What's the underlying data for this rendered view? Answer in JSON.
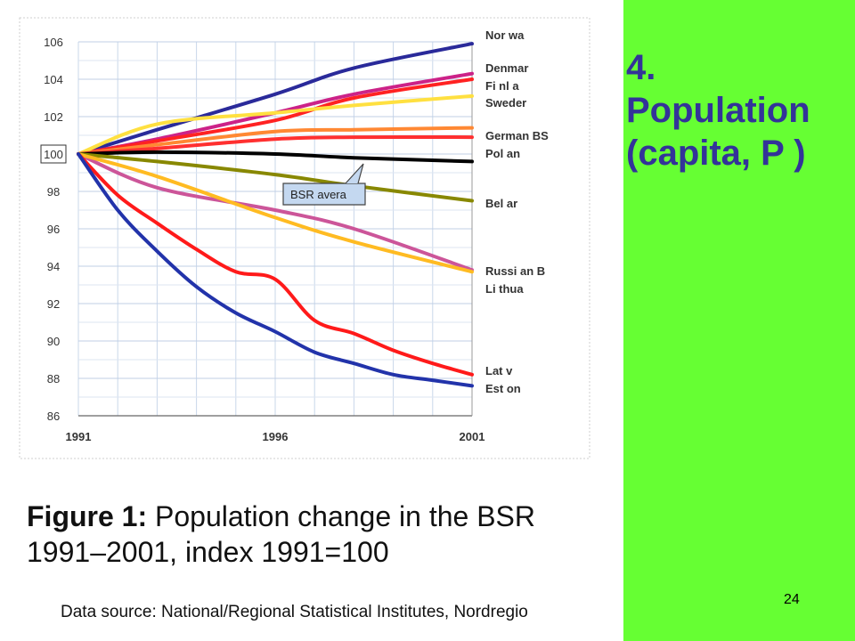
{
  "slide": {
    "title_line1": "4.",
    "title_line2": "Population",
    "title_line3": "(capita, P )",
    "page_number": "24",
    "panel_color": "#66ff33",
    "title_color": "#333399"
  },
  "figure": {
    "caption_label": "Figure 1:",
    "caption_text_line1": "Population change in the BSR",
    "caption_text_line2": "1991–2001, index 1991=100",
    "source": "Data source: National/Regional Statistical Institutes, Nordregio"
  },
  "chart_data": {
    "type": "line",
    "x_ticks": [
      "1991",
      "1996",
      "2001"
    ],
    "y_ticks": [
      "86",
      "88",
      "90",
      "92",
      "94",
      "96",
      "98",
      "100",
      "102",
      "104",
      "106"
    ],
    "xlim": [
      1991,
      2001
    ],
    "ylim": [
      86,
      106
    ],
    "grid": true,
    "annotation": "BSR avera",
    "series": [
      {
        "name": "Nor wa",
        "color": "#2a2a9a",
        "x": [
          1991,
          1993,
          1996,
          1998,
          2001
        ],
        "y": [
          100,
          101.3,
          103.2,
          104.6,
          105.9
        ]
      },
      {
        "name": "Denmar",
        "color": "#cc2288",
        "x": [
          1991,
          1993,
          1996,
          1998,
          2001
        ],
        "y": [
          100,
          100.8,
          102.2,
          103.2,
          104.3
        ]
      },
      {
        "name": "Fi nl a",
        "color": "#ff2222",
        "x": [
          1991,
          1993,
          1996,
          1998,
          2001
        ],
        "y": [
          100,
          100.7,
          101.8,
          103.0,
          104.0
        ]
      },
      {
        "name": "Sweder",
        "color": "#ffe040",
        "x": [
          1991,
          1993,
          1996,
          1998,
          2001
        ],
        "y": [
          100,
          101.6,
          102.2,
          102.6,
          103.1
        ]
      },
      {
        "name": "German BS",
        "color": "#ff8833",
        "x": [
          1991,
          1993,
          1996,
          1998,
          2001
        ],
        "y": [
          100,
          100.5,
          101.2,
          101.3,
          101.4
        ]
      },
      {
        "name": "",
        "color": "#ff3030",
        "x": [
          1991,
          1993,
          1996,
          1998,
          2001
        ],
        "y": [
          100,
          100.3,
          100.8,
          100.9,
          100.9
        ]
      },
      {
        "name": "Pol an",
        "color": "#000000",
        "x": [
          1991,
          1993,
          1996,
          1998,
          2001
        ],
        "y": [
          100,
          100.1,
          100.0,
          99.8,
          99.6
        ]
      },
      {
        "name": "Bel ar",
        "color": "#888800",
        "x": [
          1991,
          1993,
          1996,
          1998,
          2001
        ],
        "y": [
          100,
          99.6,
          98.9,
          98.3,
          97.5
        ]
      },
      {
        "name": "Russi an B",
        "color": "#cc5599",
        "x": [
          1991,
          1993,
          1996,
          1998,
          2001
        ],
        "y": [
          100,
          98.2,
          97.0,
          96.0,
          93.8
        ]
      },
      {
        "name": "Li thua",
        "color": "#ffbb22",
        "x": [
          1991,
          1993,
          1996,
          1998,
          2001
        ],
        "y": [
          100,
          98.8,
          96.6,
          95.3,
          93.7
        ]
      },
      {
        "name": "Lat v",
        "color": "#ff1a1a",
        "x": [
          1991,
          1992,
          1993,
          1994,
          1995,
          1996,
          1997,
          1998,
          1999,
          2000,
          2001
        ],
        "y": [
          100,
          97.8,
          96.3,
          94.9,
          93.7,
          93.3,
          91.1,
          90.4,
          89.5,
          88.8,
          88.2
        ]
      },
      {
        "name": "Est on",
        "color": "#2233aa",
        "x": [
          1991,
          1992,
          1993,
          1994,
          1995,
          1996,
          1997,
          1998,
          1999,
          2000,
          2001
        ],
        "y": [
          100,
          97.0,
          94.8,
          92.9,
          91.5,
          90.5,
          89.4,
          88.8,
          88.2,
          87.9,
          87.6
        ]
      }
    ]
  }
}
